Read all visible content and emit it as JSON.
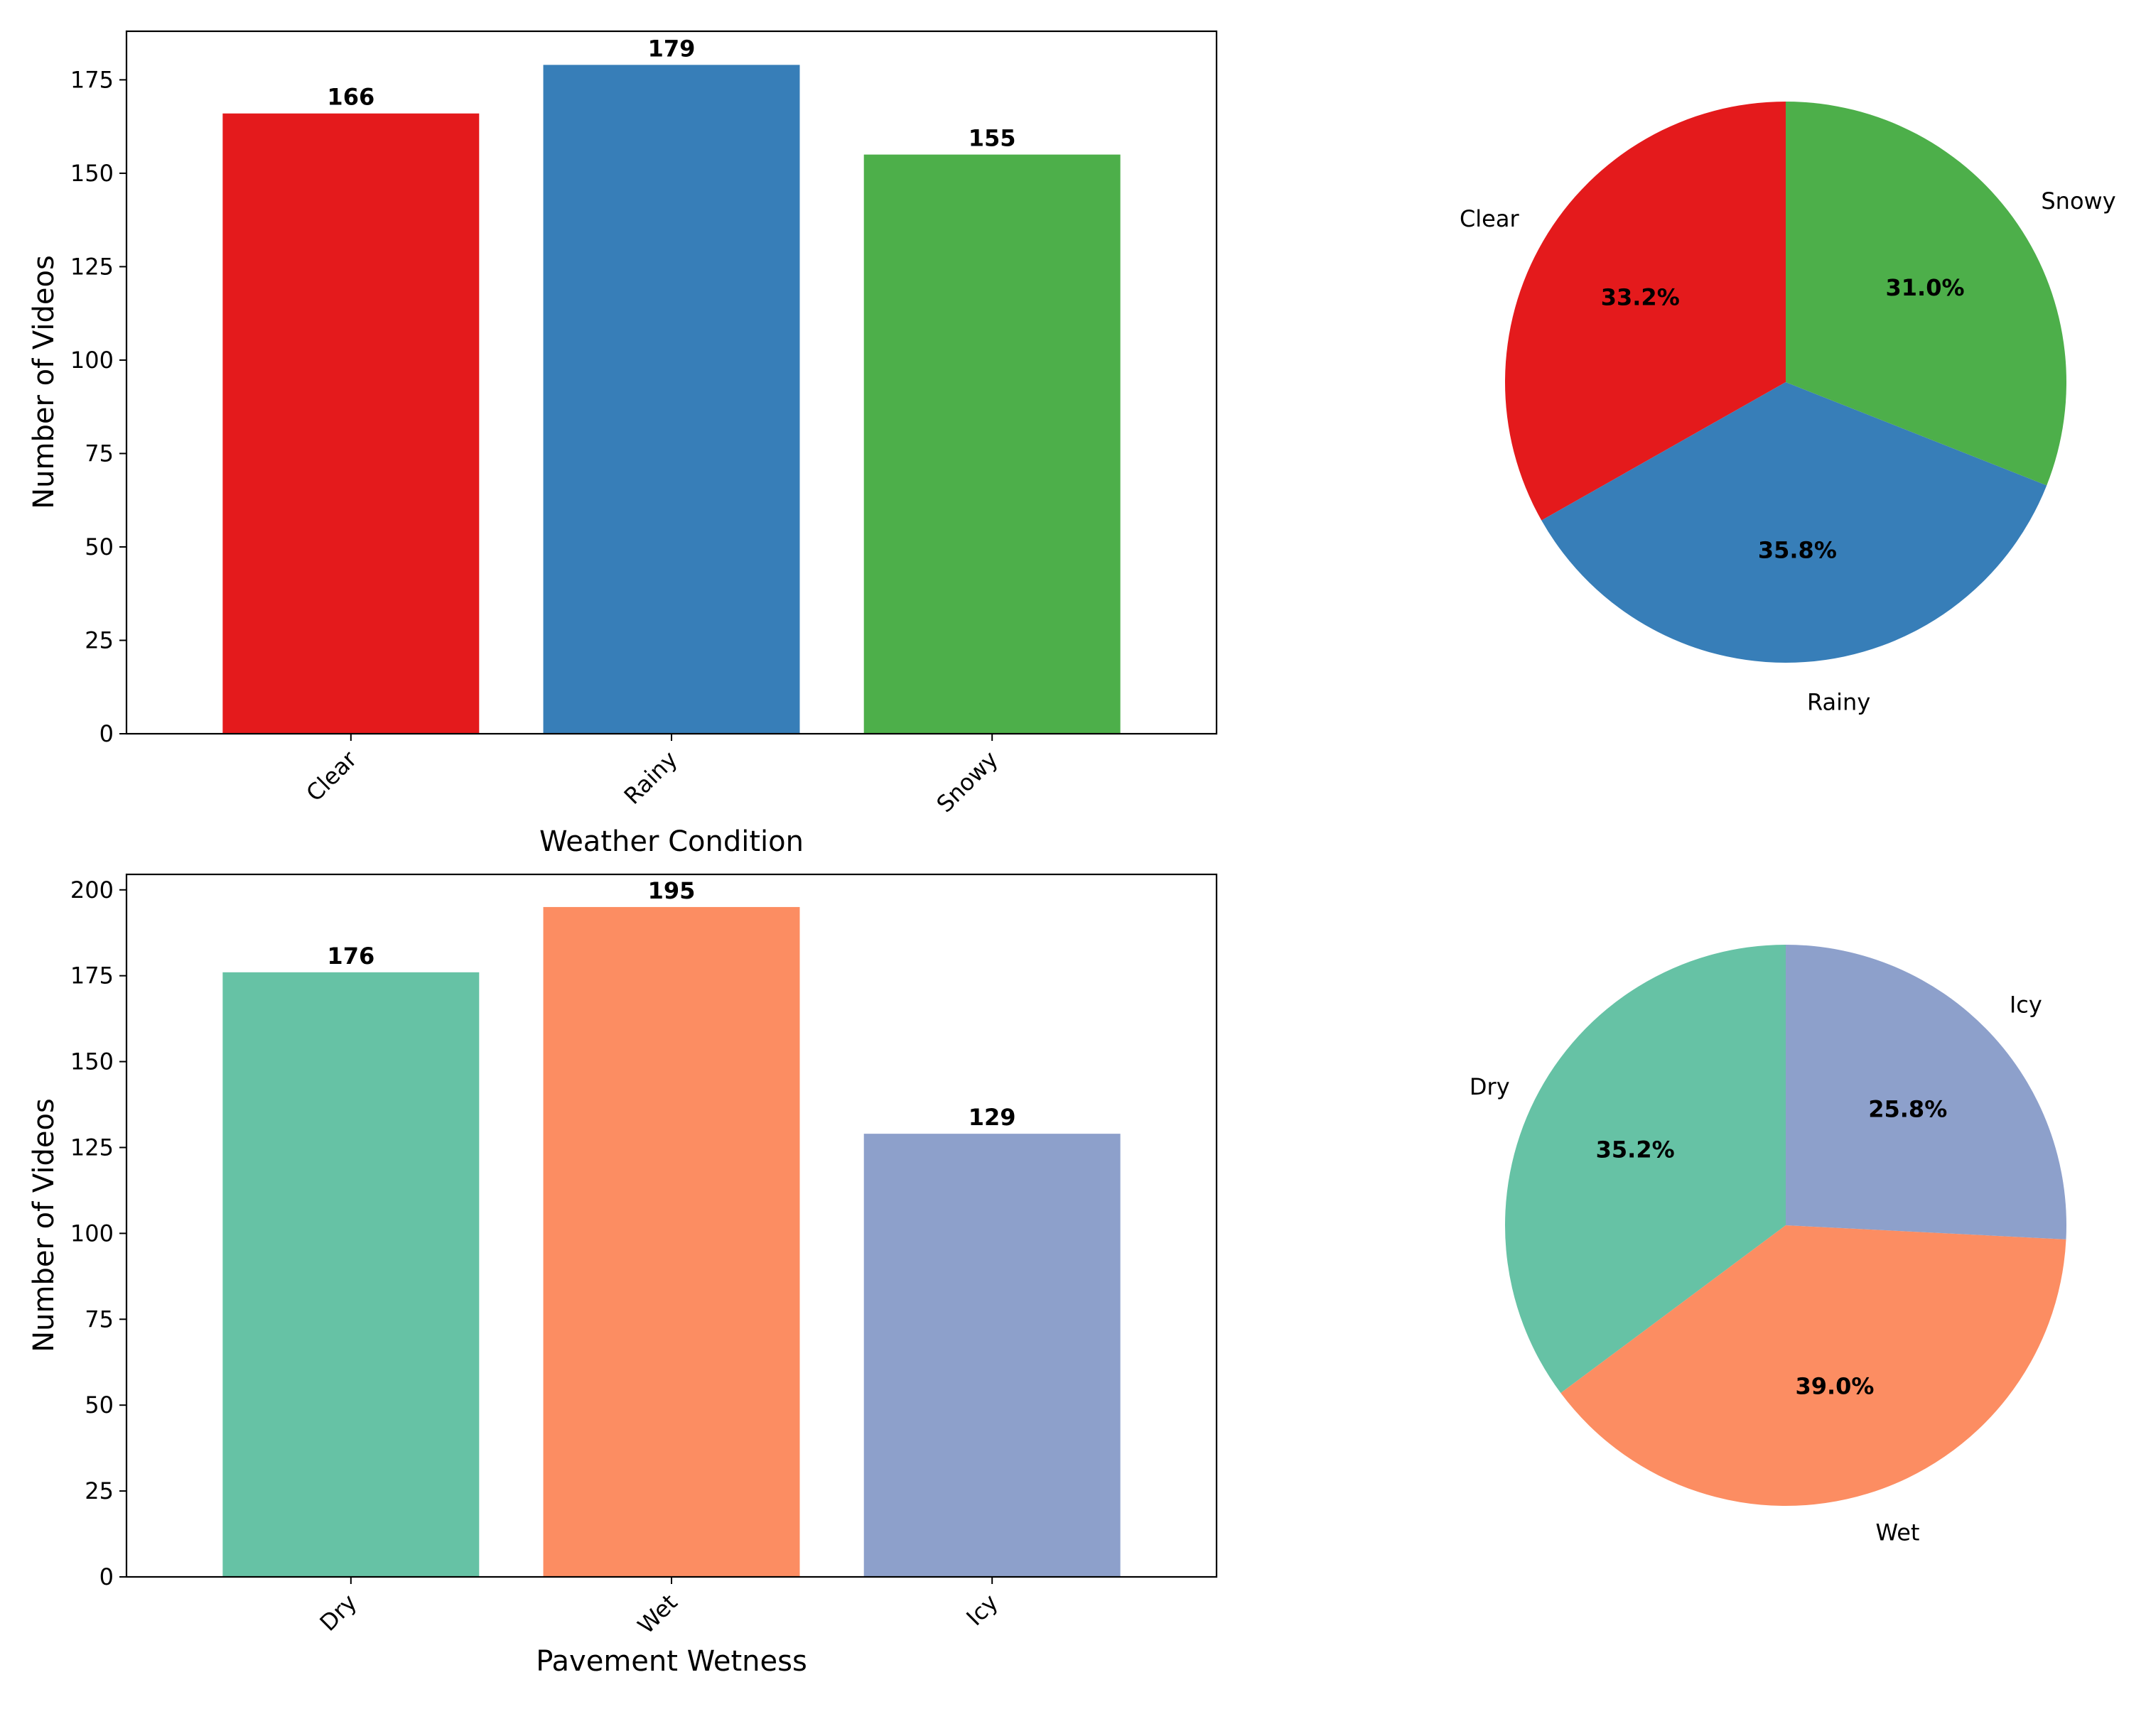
{
  "chart_data": [
    {
      "type": "bar",
      "categories": [
        "Clear",
        "Rainy",
        "Snowy"
      ],
      "values": [
        166,
        179,
        155
      ],
      "colors": [
        "#e41a1c",
        "#377eb8",
        "#4daf4a"
      ],
      "xlabel": "Weather Condition",
      "ylabel": "Number of Videos",
      "ylim": [
        0,
        188
      ],
      "yticks": [
        0,
        25,
        50,
        75,
        100,
        125,
        150,
        175
      ],
      "ytick_labels": [
        "0",
        "25",
        "50",
        "75",
        "100",
        "125",
        "150",
        "175"
      ],
      "value_labels": [
        "166",
        "179",
        "155"
      ]
    },
    {
      "type": "pie",
      "labels": [
        "Clear",
        "Rainy",
        "Snowy"
      ],
      "values": [
        166,
        179,
        155
      ],
      "percent_labels": [
        "33.2%",
        "35.8%",
        "31.0%"
      ],
      "colors": [
        "#e41a1c",
        "#377eb8",
        "#4daf4a"
      ],
      "start_angle": 90,
      "direction": "counterclockwise"
    },
    {
      "type": "bar",
      "categories": [
        "Dry",
        "Wet",
        "Icy"
      ],
      "values": [
        176,
        195,
        129
      ],
      "colors": [
        "#66c2a5",
        "#fc8d62",
        "#8da0cb"
      ],
      "xlabel": "Pavement Wetness",
      "ylabel": "Number of Videos",
      "ylim": [
        0,
        204.5
      ],
      "yticks": [
        0,
        25,
        50,
        75,
        100,
        125,
        150,
        175,
        200
      ],
      "ytick_labels": [
        "0",
        "25",
        "50",
        "75",
        "100",
        "125",
        "150",
        "175",
        "200"
      ],
      "value_labels": [
        "176",
        "195",
        "129"
      ]
    },
    {
      "type": "pie",
      "labels": [
        "Dry",
        "Wet",
        "Icy"
      ],
      "values": [
        176,
        195,
        129
      ],
      "percent_labels": [
        "35.2%",
        "39.0%",
        "25.8%"
      ],
      "colors": [
        "#66c2a5",
        "#fc8d62",
        "#8da0cb"
      ],
      "start_angle": 90,
      "direction": "counterclockwise"
    }
  ]
}
